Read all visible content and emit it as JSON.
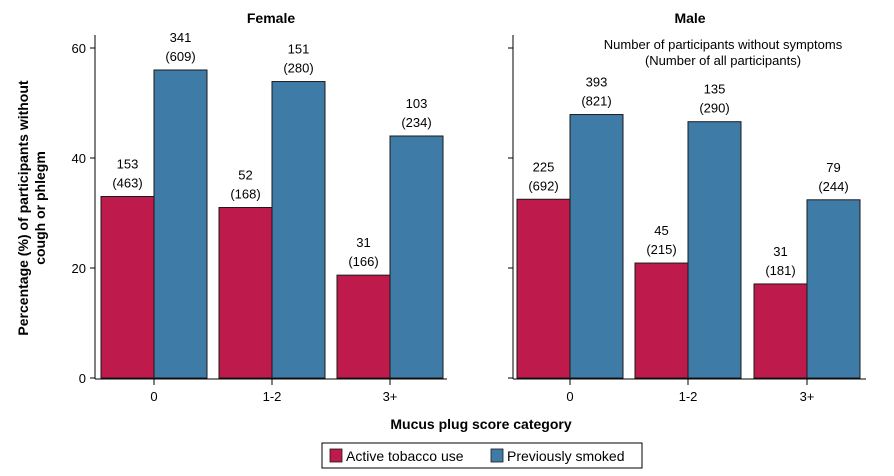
{
  "chart_data": [
    {
      "type": "bar",
      "panel": "Female",
      "title": "Female",
      "categories": [
        "0",
        "1-2",
        "3+"
      ],
      "series": [
        {
          "name": "Active tobacco use",
          "color": "#be1a4b",
          "values": [
            33.0,
            31.0,
            18.7
          ],
          "labels": [
            "153",
            "52",
            "31"
          ],
          "totals": [
            "(463)",
            "(168)",
            "(166)"
          ]
        },
        {
          "name": "Previously smoked",
          "color": "#3f7ba7",
          "values": [
            56.0,
            53.9,
            44.0
          ],
          "labels": [
            "341",
            "151",
            "103"
          ],
          "totals": [
            "(609)",
            "(280)",
            "(234)"
          ]
        }
      ],
      "ylim": [
        0,
        65
      ],
      "yticks": [
        0,
        20,
        40,
        60
      ],
      "ytick_labels": [
        "0",
        "20",
        "40",
        "60"
      ]
    },
    {
      "type": "bar",
      "panel": "Male",
      "title": "Male",
      "categories": [
        "0",
        "1-2",
        "3+"
      ],
      "series": [
        {
          "name": "Active tobacco use",
          "color": "#be1a4b",
          "values": [
            32.5,
            20.9,
            17.1
          ],
          "labels": [
            "225",
            "45",
            "31"
          ],
          "totals": [
            "(692)",
            "(215)",
            "(181)"
          ]
        },
        {
          "name": "Previously smoked",
          "color": "#3f7ba7",
          "values": [
            47.9,
            46.6,
            32.4
          ],
          "labels": [
            "393",
            "135",
            "79"
          ],
          "totals": [
            "(821)",
            "(290)",
            "(244)"
          ]
        }
      ],
      "ylim": [
        0,
        65
      ],
      "yticks": [
        0,
        20,
        40,
        60
      ]
    }
  ],
  "ylabel_line1": "Percentage (%) of participants without",
  "ylabel_line2": "cough or phlegm",
  "xlabel": "Mucus plug score category",
  "annotation_line1": "Number of participants without symptoms",
  "annotation_line2": "(Number of all participants)",
  "legend": [
    {
      "label": "Active tobacco use",
      "color": "#be1a4b"
    },
    {
      "label": "Previously smoked",
      "color": "#3f7ba7"
    }
  ],
  "bar_stroke": "#1a1a1a"
}
